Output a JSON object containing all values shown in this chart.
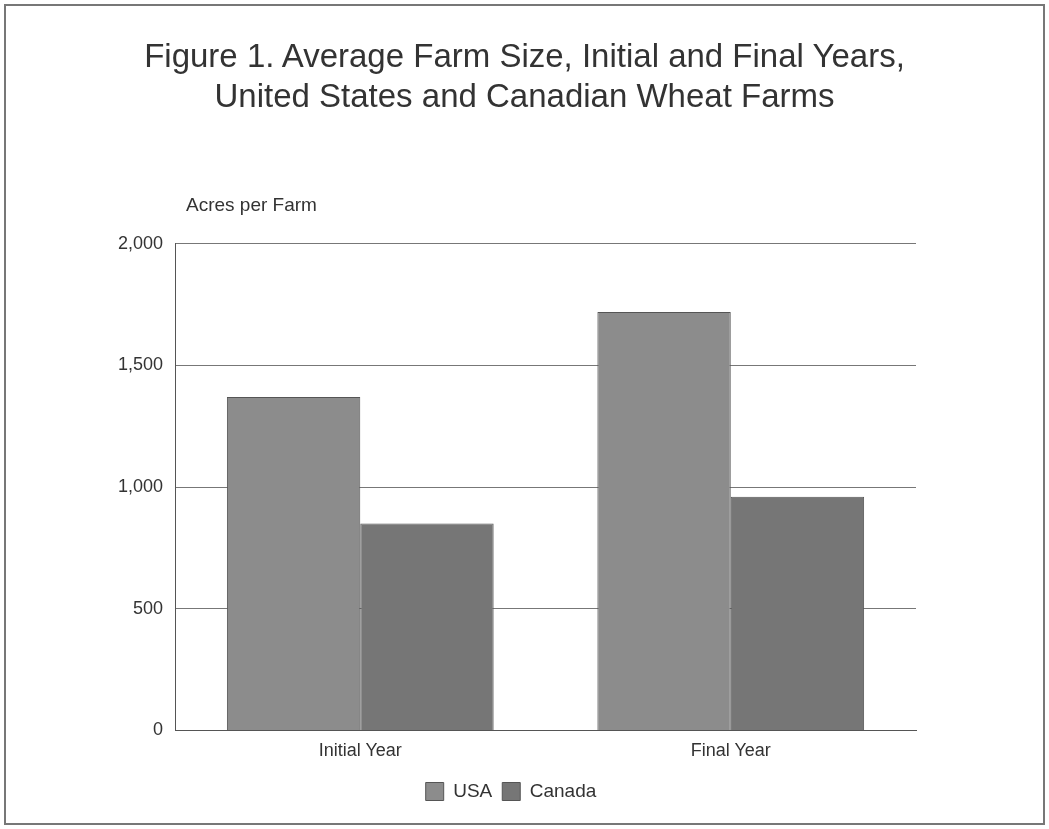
{
  "chart_data": {
    "type": "bar",
    "title": "Figure 1. Average Farm Size, Initial and Final Years,\nUnited States and Canadian Wheat Farms",
    "ylabel": "Acres per Farm",
    "categories": [
      "Initial Year",
      "Final Year"
    ],
    "series": [
      {
        "name": "USA",
        "color": "#8c8c8c",
        "values": [
          1370,
          1720
        ]
      },
      {
        "name": "Canada",
        "color": "#767676",
        "values": [
          850,
          960
        ]
      }
    ],
    "ylim": [
      0,
      2000
    ],
    "yticks": [
      0,
      {
        "value": 500,
        "label": "500"
      },
      {
        "value": 1000,
        "label": "1,000"
      },
      {
        "value": 1500,
        "label": "1,500"
      },
      {
        "value": 2000,
        "label": "2,000"
      }
    ],
    "grid": "y",
    "legend": "bottom"
  }
}
